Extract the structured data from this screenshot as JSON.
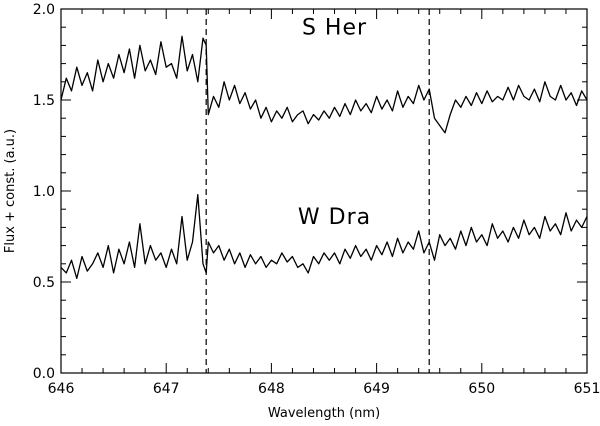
{
  "chart_data": {
    "type": "line",
    "xlabel": "Wavelength (nm)",
    "ylabel": "Flux + const. (a.u.)",
    "xlim": [
      646,
      651
    ],
    "ylim": [
      0.0,
      2.0
    ],
    "x_ticks": [
      646,
      647,
      648,
      649,
      650,
      651
    ],
    "x_tick_labels": [
      "646",
      "647",
      "648",
      "649",
      "650",
      "651"
    ],
    "y_ticks": [
      0.0,
      0.5,
      1.0,
      1.5,
      2.0
    ],
    "y_tick_labels": [
      "0.0",
      "0.5",
      "1.0",
      "1.5",
      "2.0"
    ],
    "vertical_dashed_lines": [
      647.38,
      649.5
    ],
    "series_labels": [
      {
        "text": "S  Her",
        "x": 648.6,
        "y": 1.86
      },
      {
        "text": "W  Dra",
        "x": 648.6,
        "y": 0.82
      }
    ],
    "series": [
      {
        "x": [
          646.0,
          646.05,
          646.1,
          646.15,
          646.2,
          646.25,
          646.3,
          646.35,
          646.4,
          646.45,
          646.5,
          646.55,
          646.6,
          646.65,
          646.7,
          646.75,
          646.8,
          646.85,
          646.9,
          646.95,
          647.0,
          647.05,
          647.1,
          647.15,
          647.2,
          647.25,
          647.3,
          647.35,
          647.38,
          647.4,
          647.45,
          647.5,
          647.55,
          647.6,
          647.65,
          647.7,
          647.75,
          647.8,
          647.85,
          647.9,
          647.95,
          648.0,
          648.05,
          648.1,
          648.15,
          648.2,
          648.25,
          648.3,
          648.35,
          648.4,
          648.45,
          648.5,
          648.55,
          648.6,
          648.65,
          648.7,
          648.75,
          648.8,
          648.85,
          648.9,
          648.95,
          649.0,
          649.05,
          649.1,
          649.15,
          649.2,
          649.25,
          649.3,
          649.35,
          649.4,
          649.45,
          649.5,
          649.55,
          649.6,
          649.65,
          649.7,
          649.75,
          649.8,
          649.85,
          649.9,
          649.95,
          650.0,
          650.05,
          650.1,
          650.15,
          650.2,
          650.25,
          650.3,
          650.35,
          650.4,
          650.45,
          650.5,
          650.55,
          650.6,
          650.65,
          650.7,
          650.75,
          650.8,
          650.85,
          650.9,
          650.95,
          651.0
        ],
        "values": [
          1.5,
          1.62,
          1.55,
          1.68,
          1.58,
          1.65,
          1.55,
          1.72,
          1.6,
          1.7,
          1.62,
          1.75,
          1.65,
          1.78,
          1.62,
          1.8,
          1.66,
          1.72,
          1.64,
          1.82,
          1.68,
          1.7,
          1.62,
          1.85,
          1.66,
          1.75,
          1.6,
          1.84,
          1.8,
          1.42,
          1.52,
          1.46,
          1.6,
          1.5,
          1.58,
          1.48,
          1.54,
          1.45,
          1.5,
          1.4,
          1.46,
          1.38,
          1.44,
          1.4,
          1.46,
          1.38,
          1.42,
          1.44,
          1.37,
          1.42,
          1.39,
          1.44,
          1.4,
          1.46,
          1.41,
          1.48,
          1.42,
          1.5,
          1.44,
          1.48,
          1.43,
          1.52,
          1.45,
          1.5,
          1.44,
          1.55,
          1.46,
          1.52,
          1.48,
          1.58,
          1.5,
          1.56,
          1.4,
          1.36,
          1.32,
          1.42,
          1.5,
          1.46,
          1.52,
          1.47,
          1.54,
          1.48,
          1.55,
          1.49,
          1.52,
          1.5,
          1.57,
          1.5,
          1.58,
          1.52,
          1.5,
          1.56,
          1.49,
          1.6,
          1.52,
          1.5,
          1.58,
          1.5,
          1.54,
          1.47,
          1.55,
          1.5
        ]
      },
      {
        "x": [
          646.0,
          646.05,
          646.1,
          646.15,
          646.2,
          646.25,
          646.3,
          646.35,
          646.4,
          646.45,
          646.5,
          646.55,
          646.6,
          646.65,
          646.7,
          646.75,
          646.8,
          646.85,
          646.9,
          646.95,
          647.0,
          647.05,
          647.1,
          647.15,
          647.2,
          647.25,
          647.3,
          647.35,
          647.38,
          647.4,
          647.45,
          647.5,
          647.55,
          647.6,
          647.65,
          647.7,
          647.75,
          647.8,
          647.85,
          647.9,
          647.95,
          648.0,
          648.05,
          648.1,
          648.15,
          648.2,
          648.25,
          648.3,
          648.35,
          648.4,
          648.45,
          648.5,
          648.55,
          648.6,
          648.65,
          648.7,
          648.75,
          648.8,
          648.85,
          648.9,
          648.95,
          649.0,
          649.05,
          649.1,
          649.15,
          649.2,
          649.25,
          649.3,
          649.35,
          649.4,
          649.45,
          649.5,
          649.55,
          649.6,
          649.65,
          649.7,
          649.75,
          649.8,
          649.85,
          649.9,
          649.95,
          650.0,
          650.05,
          650.1,
          650.15,
          650.2,
          650.25,
          650.3,
          650.35,
          650.4,
          650.45,
          650.5,
          650.55,
          650.6,
          650.65,
          650.7,
          650.75,
          650.8,
          650.85,
          650.9,
          650.95,
          651.0
        ],
        "values": [
          0.58,
          0.55,
          0.62,
          0.52,
          0.64,
          0.56,
          0.6,
          0.66,
          0.58,
          0.7,
          0.55,
          0.68,
          0.6,
          0.72,
          0.58,
          0.82,
          0.6,
          0.7,
          0.62,
          0.66,
          0.58,
          0.68,
          0.6,
          0.86,
          0.62,
          0.72,
          0.98,
          0.6,
          0.55,
          0.72,
          0.66,
          0.7,
          0.62,
          0.68,
          0.6,
          0.66,
          0.58,
          0.65,
          0.6,
          0.64,
          0.58,
          0.62,
          0.6,
          0.66,
          0.61,
          0.64,
          0.58,
          0.6,
          0.55,
          0.64,
          0.6,
          0.66,
          0.62,
          0.66,
          0.6,
          0.68,
          0.63,
          0.7,
          0.64,
          0.68,
          0.62,
          0.7,
          0.65,
          0.72,
          0.64,
          0.74,
          0.66,
          0.72,
          0.68,
          0.78,
          0.66,
          0.72,
          0.62,
          0.76,
          0.7,
          0.74,
          0.68,
          0.78,
          0.7,
          0.8,
          0.72,
          0.76,
          0.7,
          0.82,
          0.74,
          0.78,
          0.72,
          0.8,
          0.74,
          0.84,
          0.76,
          0.8,
          0.74,
          0.86,
          0.78,
          0.82,
          0.76,
          0.88,
          0.78,
          0.84,
          0.8,
          0.86
        ]
      }
    ]
  }
}
